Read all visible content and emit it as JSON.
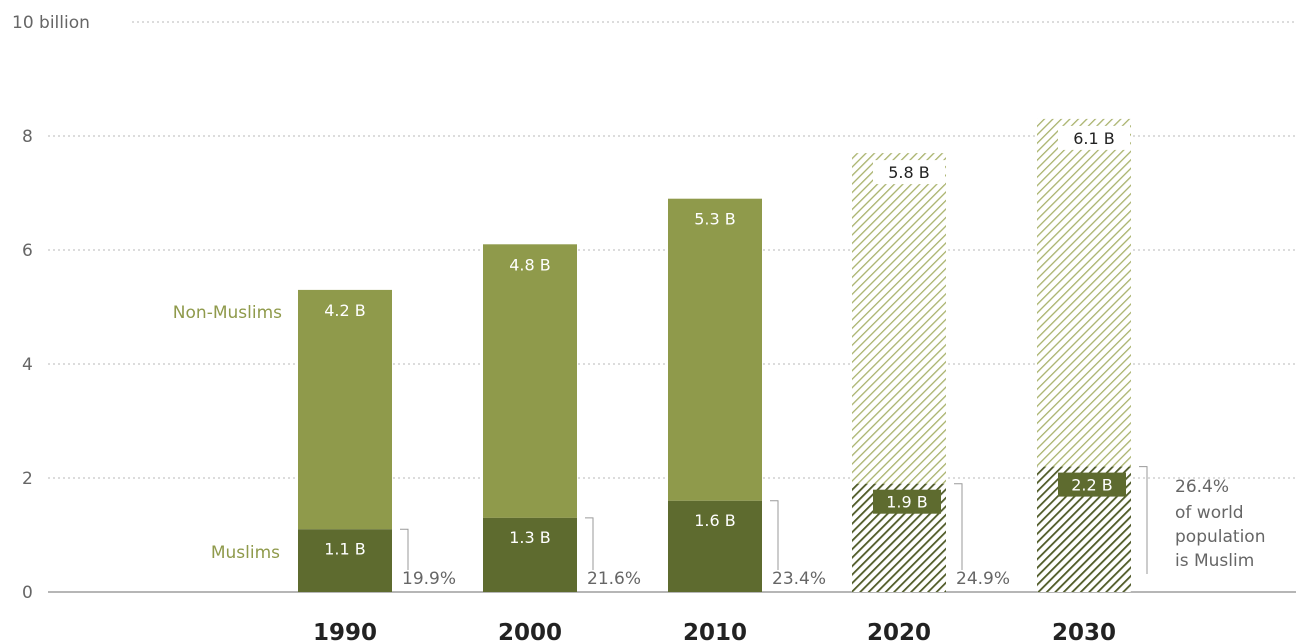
{
  "chart_data": {
    "type": "bar",
    "stacked": true,
    "categories": [
      "1990",
      "2000",
      "2010",
      "2020",
      "2030"
    ],
    "projected_categories": [
      "2020",
      "2030"
    ],
    "ylim": [
      0,
      10
    ],
    "y_ticks": [
      {
        "value": 0,
        "label": "0"
      },
      {
        "value": 2,
        "label": "2"
      },
      {
        "value": 4,
        "label": "4"
      },
      {
        "value": 6,
        "label": "6"
      },
      {
        "value": 8,
        "label": "8"
      },
      {
        "value": 10,
        "label": "10 billion"
      }
    ],
    "grid": true,
    "series": [
      {
        "name": "Muslims",
        "values": [
          1.1,
          1.3,
          1.6,
          1.9,
          2.2
        ],
        "labels": [
          "1.1 B",
          "1.3 B",
          "1.6 B",
          "1.9 B",
          "2.2 B"
        ],
        "color": "#5e6b2f"
      },
      {
        "name": "Non-Muslims",
        "values": [
          4.2,
          4.8,
          5.3,
          5.8,
          6.1
        ],
        "labels": [
          "4.2 B",
          "4.8 B",
          "5.3 B",
          "5.8 B",
          "6.1 B"
        ],
        "color": "#8f9a4b"
      }
    ],
    "muslim_share": [
      "19.9%",
      "21.6%",
      "23.4%",
      "24.9%",
      "26.4%"
    ],
    "note_lines": [
      "of world",
      "population",
      "is Muslim"
    ]
  }
}
